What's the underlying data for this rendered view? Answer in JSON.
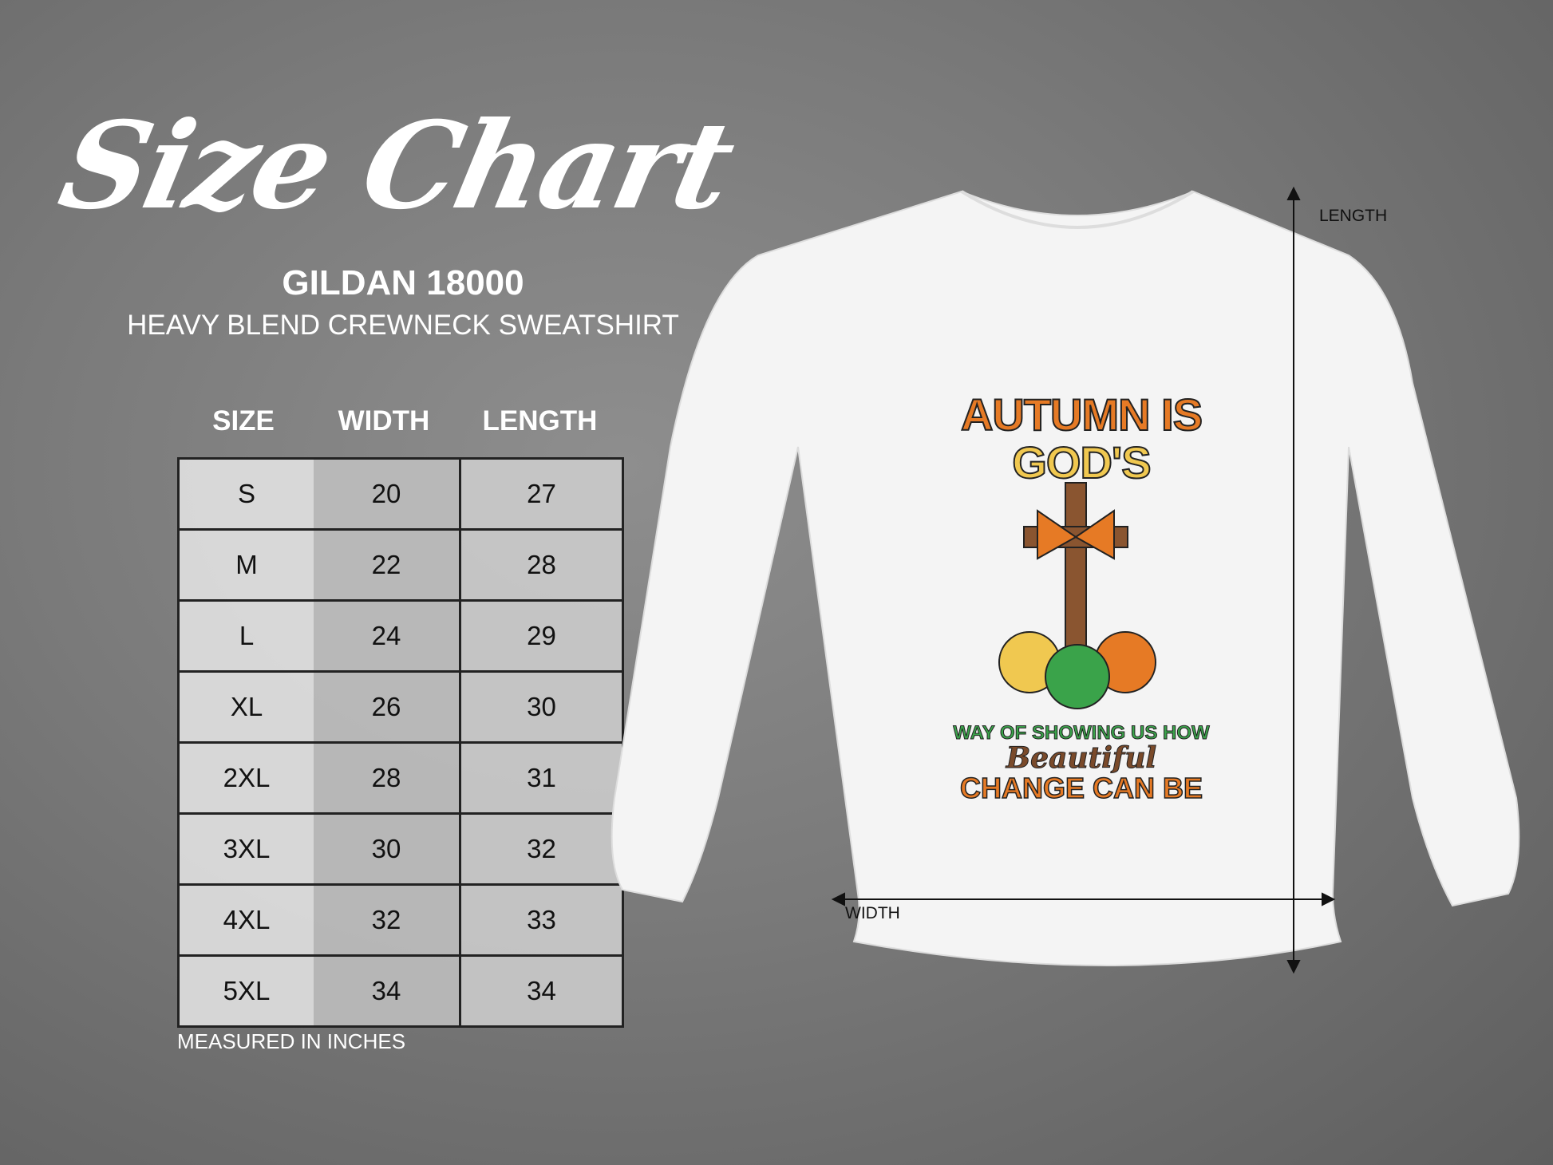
{
  "title": "Size Chart",
  "brand": "GILDAN 18000",
  "subtitle": "HEAVY BLEND CREWNECK SWEATSHIRT",
  "table": {
    "headers": [
      "SIZE",
      "WIDTH",
      "LENGTH"
    ],
    "rows": [
      [
        "S",
        "20",
        "27"
      ],
      [
        "M",
        "22",
        "28"
      ],
      [
        "L",
        "24",
        "29"
      ],
      [
        "XL",
        "26",
        "30"
      ],
      [
        "2XL",
        "28",
        "31"
      ],
      [
        "3XL",
        "30",
        "32"
      ],
      [
        "4XL",
        "32",
        "33"
      ],
      [
        "5XL",
        "34",
        "34"
      ]
    ]
  },
  "note": "MEASURED IN INCHES",
  "diagram": {
    "length_label": "LENGTH",
    "width_label": "WIDTH"
  },
  "design": {
    "line1": "AUTUMN IS",
    "line2": "GOD'S",
    "line3": "WAY OF SHOWING US HOW",
    "line4": "Beautiful",
    "line5": "CHANGE CAN BE"
  },
  "colors": {
    "orange": "#e67a25",
    "green": "#3aa34a",
    "yellow": "#f0c850",
    "brown": "#7a4a2a"
  }
}
